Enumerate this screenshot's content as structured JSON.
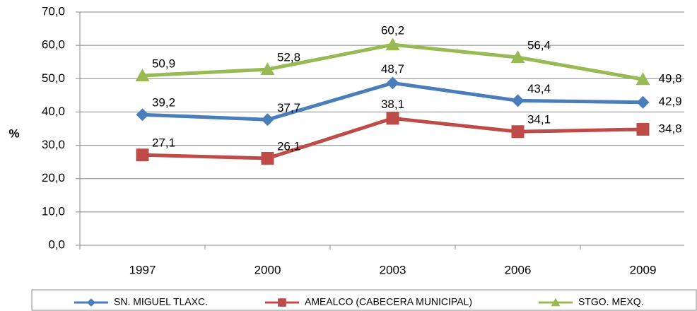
{
  "chart_data": {
    "type": "line",
    "y_label": "%",
    "categories": [
      "1997",
      "2000",
      "2003",
      "2006",
      "2009"
    ],
    "series": [
      {
        "name": "SN. MIGUEL TLAXC.",
        "color": "#4a7ebb",
        "marker": "diamond",
        "values": [
          39.2,
          37.7,
          48.7,
          43.4,
          42.9
        ],
        "value_labels": [
          "39,2",
          "37,7",
          "48,7",
          "43,4",
          "42,9"
        ]
      },
      {
        "name": "AMEALCO (CABECERA MUNICIPAL)",
        "color": "#be4b48",
        "marker": "square",
        "values": [
          27.1,
          26.1,
          38.1,
          34.1,
          34.8
        ],
        "value_labels": [
          "27,1",
          "26,1",
          "38,1",
          "34,1",
          "34,8"
        ]
      },
      {
        "name": "STGO. MEXQ.",
        "color": "#98b954",
        "marker": "triangle",
        "values": [
          50.9,
          52.8,
          60.2,
          56.4,
          49.8
        ],
        "value_labels": [
          "50,9",
          "52,8",
          "60,2",
          "56,4",
          "49,8"
        ]
      }
    ],
    "ylim": [
      0,
      70
    ],
    "yticks": [
      {
        "value": 0,
        "label": "0,0"
      },
      {
        "value": 10,
        "label": "10,0"
      },
      {
        "value": 20,
        "label": "20,0"
      },
      {
        "value": 30,
        "label": "30,0"
      },
      {
        "value": 40,
        "label": "40,0"
      },
      {
        "value": 50,
        "label": "50,0"
      },
      {
        "value": 60,
        "label": "60,0"
      },
      {
        "value": 70,
        "label": "70,0"
      }
    ],
    "grid": true,
    "legend": "bottom"
  }
}
